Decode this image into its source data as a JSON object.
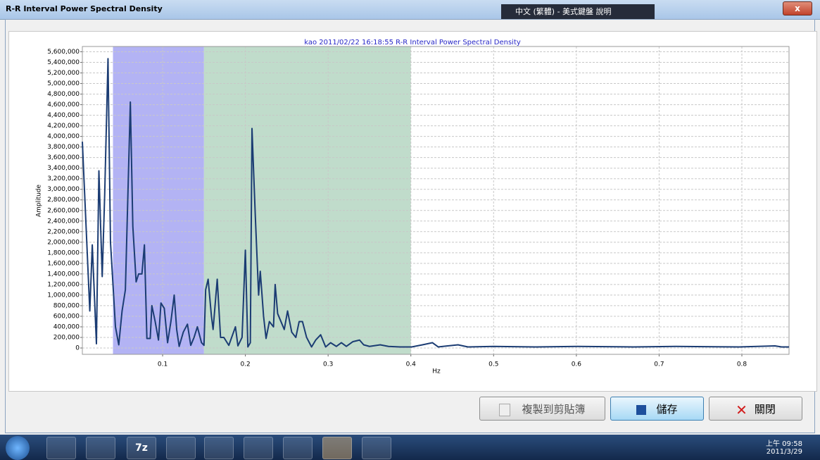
{
  "window": {
    "title": "R-R Interval Power Spectral Density",
    "ime": "中文 (繁體) - 美式鍵盤",
    "help": "說明",
    "buttons": {
      "copy": "複製到剪貼簿",
      "save": "儲存",
      "close": "關閉"
    },
    "taskbar": {
      "icon_7z": "7z",
      "time": "上午 09:58",
      "date": "2011/3/29"
    }
  },
  "chart_data": {
    "type": "line",
    "title": "kao  2011/02/22 16:18:55 R-R Interval Power Spectral Density",
    "x_label": "Hz",
    "y_label": "Amplitude",
    "xlim": [
      0.003,
      0.857
    ],
    "ylim": [
      -120000,
      5700000
    ],
    "xticks": [
      0.1,
      0.2,
      0.3,
      0.4,
      0.5,
      0.6,
      0.7,
      0.8
    ],
    "yticks": [
      0,
      {
        "value": 200000,
        "label": "200,000"
      },
      {
        "value": 400000,
        "label": "400,000"
      },
      {
        "value": 600000,
        "label": "600,000"
      },
      {
        "value": 800000,
        "label": "800,000"
      },
      {
        "value": 1000000,
        "label": "1,000,000"
      },
      {
        "value": 1200000,
        "label": "1,200,000"
      },
      {
        "value": 1400000,
        "label": "1,400,000"
      },
      {
        "value": 1600000,
        "label": "1,600,000"
      },
      {
        "value": 1800000,
        "label": "1,800,000"
      },
      {
        "value": 2000000,
        "label": "2,000,000"
      },
      {
        "value": 2200000,
        "label": "2,200,000"
      },
      {
        "value": 2400000,
        "label": "2,400,000"
      },
      {
        "value": 2600000,
        "label": "2,600,000"
      },
      {
        "value": 2800000,
        "label": "2,800,000"
      },
      {
        "value": 3000000,
        "label": "3,000,000"
      },
      {
        "value": 3200000,
        "label": "3,200,000"
      },
      {
        "value": 3400000,
        "label": "3,400,000"
      },
      {
        "value": 3600000,
        "label": "3,600,000"
      },
      {
        "value": 3800000,
        "label": "3,800,000"
      },
      {
        "value": 4000000,
        "label": "4,000,000"
      },
      {
        "value": 4200000,
        "label": "4,200,000"
      },
      {
        "value": 4400000,
        "label": "4,400,000"
      },
      {
        "value": 4600000,
        "label": "4,600,000"
      },
      {
        "value": 4800000,
        "label": "4,800,000"
      },
      {
        "value": 5000000,
        "label": "5,000,000"
      },
      {
        "value": 5200000,
        "label": "5,200,000"
      },
      {
        "value": 5400000,
        "label": "5,400,000"
      },
      {
        "value": 5600000,
        "label": "5,600,000"
      }
    ],
    "grid": true,
    "bands": [
      {
        "from": 0.04,
        "to": 0.15,
        "color": "#b3b3f4"
      },
      {
        "from": 0.15,
        "to": 0.4,
        "color": "#c0dccb"
      }
    ],
    "series": [
      {
        "color": "#1b3c73",
        "x": [
          0.003,
          0.012,
          0.015,
          0.02,
          0.023,
          0.027,
          0.03,
          0.034,
          0.037,
          0.043,
          0.047,
          0.051,
          0.055,
          0.061,
          0.064,
          0.068,
          0.071,
          0.075,
          0.078,
          0.081,
          0.085,
          0.087,
          0.091,
          0.095,
          0.098,
          0.102,
          0.106,
          0.11,
          0.114,
          0.117,
          0.12,
          0.125,
          0.13,
          0.134,
          0.138,
          0.142,
          0.147,
          0.15,
          0.152,
          0.155,
          0.159,
          0.161,
          0.166,
          0.17,
          0.174,
          0.18,
          0.188,
          0.191,
          0.196,
          0.2,
          0.203,
          0.206,
          0.208,
          0.212,
          0.216,
          0.218,
          0.222,
          0.225,
          0.229,
          0.234,
          0.236,
          0.239,
          0.243,
          0.247,
          0.251,
          0.256,
          0.261,
          0.265,
          0.269,
          0.274,
          0.28,
          0.285,
          0.291,
          0.297,
          0.303,
          0.31,
          0.316,
          0.322,
          0.33,
          0.338,
          0.343,
          0.35,
          0.363,
          0.373,
          0.387,
          0.401,
          0.414,
          0.426,
          0.433,
          0.457,
          0.469,
          0.5,
          0.55,
          0.601,
          0.669,
          0.72,
          0.797,
          0.84,
          0.848,
          0.857
        ],
        "values": [
          3900000,
          700000,
          1950000,
          80000,
          3350000,
          1350000,
          2900000,
          5470000,
          2000000,
          400000,
          60000,
          700000,
          1100000,
          4650000,
          2300000,
          1250000,
          1400000,
          1400000,
          1950000,
          180000,
          180000,
          800000,
          500000,
          150000,
          850000,
          750000,
          100000,
          500000,
          1000000,
          350000,
          30000,
          300000,
          450000,
          50000,
          200000,
          400000,
          100000,
          50000,
          1100000,
          1300000,
          600000,
          350000,
          1300000,
          200000,
          200000,
          50000,
          400000,
          40000,
          200000,
          1850000,
          20000,
          100000,
          4150000,
          2500000,
          1000000,
          1450000,
          600000,
          180000,
          500000,
          400000,
          1200000,
          650000,
          500000,
          350000,
          700000,
          300000,
          200000,
          500000,
          500000,
          200000,
          20000,
          150000,
          250000,
          20000,
          100000,
          30000,
          100000,
          30000,
          120000,
          150000,
          60000,
          30000,
          60000,
          30000,
          20000,
          20000,
          60000,
          100000,
          20000,
          60000,
          20000,
          30000,
          20000,
          30000,
          20000,
          30000,
          20000,
          40000,
          20000,
          20000
        ]
      }
    ]
  }
}
